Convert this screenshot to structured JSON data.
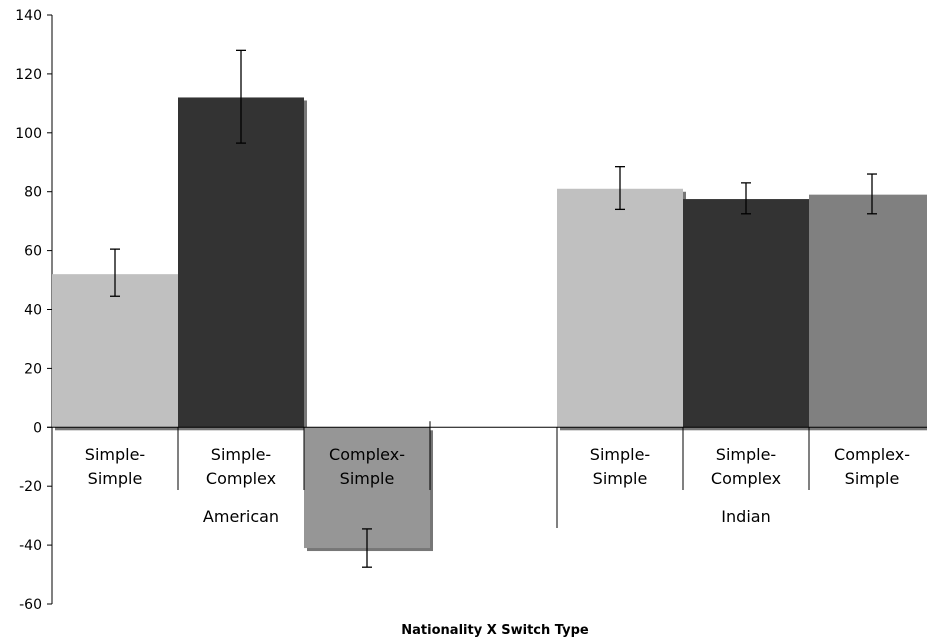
{
  "chart_data": {
    "type": "bar",
    "title": "",
    "xlabel": "Nationality X Switch Type",
    "ylabel": "",
    "ylim": [
      -60,
      140
    ],
    "yticks": [
      140,
      120,
      100,
      80,
      60,
      40,
      20,
      0,
      -20,
      -40,
      -60
    ],
    "grid": false,
    "legend": "none",
    "groups": [
      {
        "name": "American",
        "categories": [
          {
            "label": [
              "Simple-",
              "Simple"
            ],
            "value": 52,
            "error_low": 44.5,
            "error_high": 60.5,
            "color": "#c0c0c0"
          },
          {
            "label": [
              "Simple-",
              "Complex"
            ],
            "value": 112,
            "error_low": 96.5,
            "error_high": 128,
            "color": "#333333"
          },
          {
            "label": [
              "Complex-",
              "Simple"
            ],
            "value": -41,
            "error_low": -47.5,
            "error_high": -34.5,
            "color": "#969696"
          }
        ]
      },
      {
        "name": "Indian",
        "categories": [
          {
            "label": [
              "Simple-",
              "Simple"
            ],
            "value": 81,
            "error_low": 74,
            "error_high": 88.5,
            "color": "#c0c0c0"
          },
          {
            "label": [
              "Simple-",
              "Complex"
            ],
            "value": 77.5,
            "error_low": 72.5,
            "error_high": 83,
            "color": "#333333"
          },
          {
            "label": [
              "Complex-",
              "Simple"
            ],
            "value": 79,
            "error_low": 72.5,
            "error_high": 86,
            "color": "#808080"
          }
        ]
      }
    ]
  }
}
